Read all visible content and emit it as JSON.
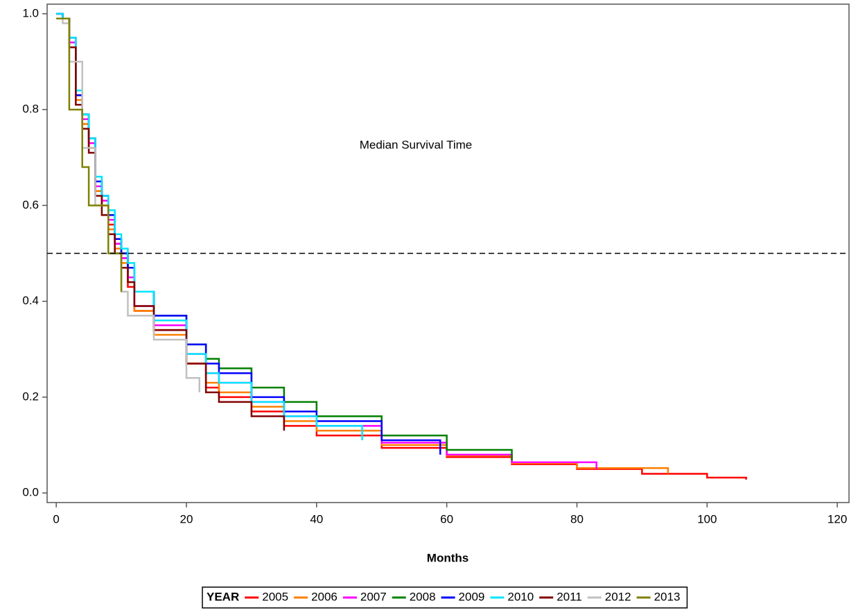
{
  "chart_data": {
    "type": "line",
    "step": true,
    "annotation": "Median Survival Time",
    "xlabel": "Months",
    "legend_title": "YEAR",
    "reference_line": 0.5,
    "xlim": [
      -1.4,
      121.8
    ],
    "xticks": [
      0,
      20,
      40,
      60,
      80,
      100,
      120
    ],
    "ylim": [
      -0.02,
      1.02
    ],
    "yticks": [
      {
        "value": 0,
        "label": "0.0"
      },
      0.2,
      0.4,
      0.6,
      0.8,
      {
        "value": 1,
        "label": "1.0"
      }
    ],
    "series": [
      {
        "name": "2005",
        "color": "#ff0000",
        "x": [
          0,
          1,
          2,
          3,
          4,
          5,
          6,
          7,
          8,
          9,
          10,
          11,
          12,
          15,
          20,
          23,
          25,
          30,
          35,
          40,
          50,
          60,
          70,
          80,
          90,
          100,
          106
        ],
        "values": [
          1.0,
          0.99,
          0.94,
          0.82,
          0.77,
          0.72,
          0.63,
          0.6,
          0.56,
          0.52,
          0.49,
          0.43,
          0.38,
          0.34,
          0.27,
          0.22,
          0.2,
          0.17,
          0.14,
          0.12,
          0.094,
          0.075,
          0.06,
          0.05,
          0.04,
          0.032,
          0.028
        ]
      },
      {
        "name": "2006",
        "color": "#ff7f00",
        "x": [
          0,
          1,
          2,
          3,
          4,
          5,
          6,
          7,
          8,
          9,
          10,
          11,
          12,
          15,
          20,
          23,
          25,
          30,
          35,
          40,
          50,
          60,
          70,
          80,
          94
        ],
        "values": [
          1.0,
          0.99,
          0.94,
          0.82,
          0.77,
          0.72,
          0.63,
          0.6,
          0.55,
          0.51,
          0.48,
          0.44,
          0.38,
          0.33,
          0.27,
          0.23,
          0.21,
          0.18,
          0.15,
          0.13,
          0.1,
          0.078,
          0.062,
          0.052,
          0.04
        ]
      },
      {
        "name": "2007",
        "color": "#ff00ff",
        "x": [
          0,
          1,
          2,
          3,
          4,
          5,
          6,
          7,
          8,
          9,
          10,
          11,
          12,
          15,
          20,
          23,
          25,
          30,
          35,
          40,
          50,
          60,
          70,
          83
        ],
        "values": [
          1.0,
          0.99,
          0.94,
          0.83,
          0.78,
          0.73,
          0.64,
          0.61,
          0.57,
          0.52,
          0.49,
          0.45,
          0.39,
          0.35,
          0.29,
          0.25,
          0.23,
          0.19,
          0.16,
          0.14,
          0.105,
          0.08,
          0.064,
          0.05
        ]
      },
      {
        "name": "2008",
        "color": "#008000",
        "x": [
          0,
          1,
          2,
          3,
          4,
          5,
          6,
          7,
          8,
          9,
          10,
          11,
          12,
          15,
          20,
          23,
          25,
          30,
          35,
          40,
          50,
          60,
          70
        ],
        "values": [
          1.0,
          0.99,
          0.95,
          0.83,
          0.79,
          0.74,
          0.65,
          0.62,
          0.58,
          0.53,
          0.5,
          0.47,
          0.42,
          0.37,
          0.31,
          0.28,
          0.26,
          0.22,
          0.19,
          0.16,
          0.12,
          0.09,
          0.068
        ]
      },
      {
        "name": "2009",
        "color": "#0000ff",
        "x": [
          0,
          1,
          2,
          3,
          4,
          5,
          6,
          7,
          8,
          9,
          10,
          11,
          12,
          15,
          20,
          23,
          25,
          30,
          35,
          40,
          50,
          59
        ],
        "values": [
          1.0,
          0.99,
          0.95,
          0.83,
          0.79,
          0.74,
          0.65,
          0.62,
          0.58,
          0.53,
          0.5,
          0.47,
          0.42,
          0.37,
          0.31,
          0.27,
          0.25,
          0.2,
          0.17,
          0.15,
          0.11,
          0.08
        ]
      },
      {
        "name": "2010",
        "color": "#00e5ff",
        "x": [
          0,
          1,
          2,
          3,
          4,
          5,
          6,
          7,
          8,
          9,
          10,
          11,
          12,
          15,
          20,
          23,
          25,
          30,
          35,
          40,
          47
        ],
        "values": [
          1.0,
          0.99,
          0.95,
          0.84,
          0.79,
          0.74,
          0.66,
          0.62,
          0.59,
          0.54,
          0.51,
          0.48,
          0.42,
          0.36,
          0.29,
          0.25,
          0.23,
          0.19,
          0.16,
          0.14,
          0.11
        ]
      },
      {
        "name": "2011",
        "color": "#800000",
        "x": [
          0,
          1,
          2,
          3,
          4,
          5,
          6,
          7,
          8,
          9,
          10,
          11,
          12,
          15,
          20,
          23,
          25,
          30,
          35
        ],
        "values": [
          0.99,
          0.99,
          0.93,
          0.81,
          0.76,
          0.71,
          0.62,
          0.58,
          0.54,
          0.5,
          0.47,
          0.44,
          0.39,
          0.34,
          0.27,
          0.21,
          0.19,
          0.16,
          0.13
        ]
      },
      {
        "name": "2012",
        "color": "#c0c0c0",
        "x": [
          0,
          1,
          2,
          4,
          6,
          8,
          10,
          11,
          15,
          20,
          22
        ],
        "values": [
          0.99,
          0.98,
          0.9,
          0.72,
          0.6,
          0.5,
          0.42,
          0.37,
          0.32,
          0.24,
          0.21
        ]
      },
      {
        "name": "2013",
        "color": "#808000",
        "x": [
          0,
          2,
          4,
          5,
          8,
          10
        ],
        "values": [
          0.99,
          0.8,
          0.68,
          0.6,
          0.5,
          0.42
        ]
      }
    ]
  }
}
